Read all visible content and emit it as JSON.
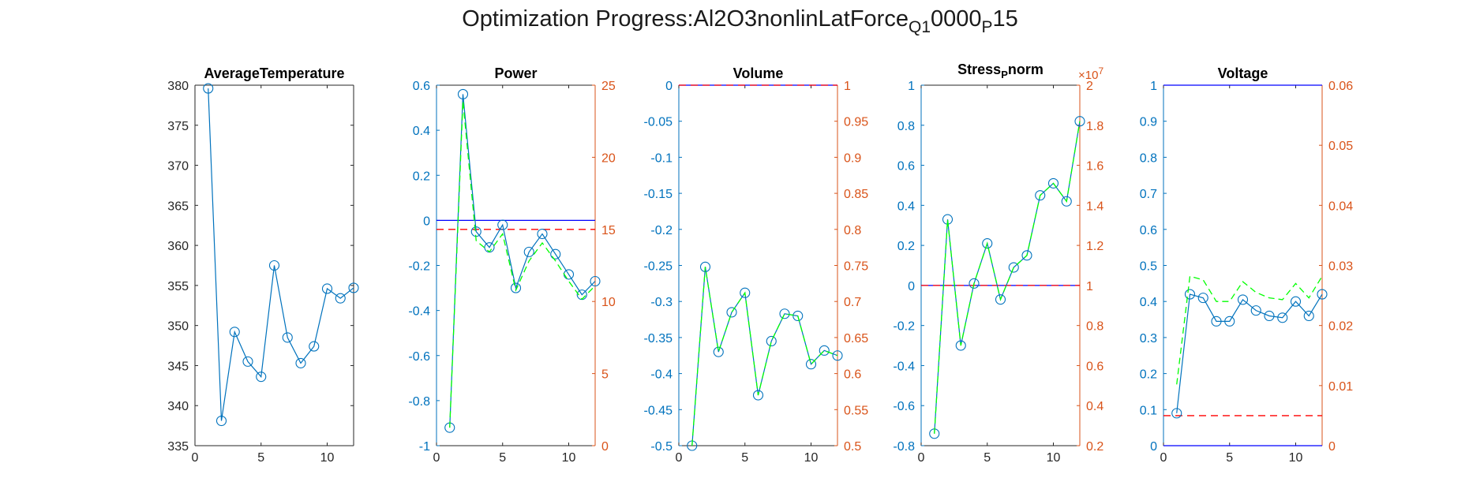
{
  "title": {
    "prefix": "Optimization Progress:Al2O3nonlinLatForce",
    "sub1": "Q1",
    "mid": "0000",
    "sub2": "P",
    "suffix": "15"
  },
  "colors": {
    "axis_left": "#0072BD",
    "axis_right": "#D95319",
    "history": "#0072BD",
    "surrogate": "#00FF00",
    "target": "#0000FF",
    "limit": "#FF0000",
    "black_axis": "#262626"
  },
  "chart_data": [
    {
      "type": "line",
      "title": "AverageTemperature",
      "x": [
        1,
        2,
        3,
        4,
        5,
        6,
        7,
        8,
        9,
        10,
        11,
        12
      ],
      "xlim": [
        0,
        12
      ],
      "xticks": [
        0,
        5,
        10
      ],
      "ylim": [
        335,
        380
      ],
      "yticks": [
        335,
        340,
        345,
        350,
        355,
        360,
        365,
        370,
        375,
        380
      ],
      "series": [
        {
          "role": "history",
          "markers": true,
          "values": [
            379.6,
            338.1,
            349.2,
            345.5,
            343.6,
            357.5,
            348.5,
            345.3,
            347.4,
            354.6,
            353.4,
            354.7
          ]
        }
      ]
    },
    {
      "type": "line",
      "title": "Power",
      "x": [
        1,
        2,
        3,
        4,
        5,
        6,
        7,
        8,
        9,
        10,
        11,
        12
      ],
      "xlim": [
        0,
        12
      ],
      "xticks": [
        0,
        5,
        10
      ],
      "ylim": [
        -1,
        0.6
      ],
      "yticks": [
        -1,
        -0.8,
        -0.6,
        -0.4,
        -0.2,
        0,
        0.2,
        0.4,
        0.6
      ],
      "ylim_right": [
        0,
        25
      ],
      "yticks_right": [
        0,
        5,
        10,
        15,
        20,
        25
      ],
      "series": [
        {
          "role": "history",
          "markers": true,
          "values": [
            -0.92,
            0.56,
            -0.05,
            -0.12,
            -0.02,
            -0.3,
            -0.14,
            -0.06,
            -0.15,
            -0.24,
            -0.33,
            -0.27
          ]
        },
        {
          "role": "surrogate",
          "values": [
            -0.92,
            0.53,
            -0.09,
            -0.14,
            -0.06,
            -0.31,
            -0.18,
            -0.1,
            -0.18,
            -0.27,
            -0.35,
            -0.29
          ]
        }
      ],
      "hlines": [
        {
          "role": "target",
          "axis": "left",
          "value": 0
        },
        {
          "role": "limit",
          "axis": "right",
          "value": 15
        }
      ]
    },
    {
      "type": "line",
      "title": "Volume",
      "x": [
        1,
        2,
        3,
        4,
        5,
        6,
        7,
        8,
        9,
        10,
        11,
        12
      ],
      "xlim": [
        0,
        12
      ],
      "xticks": [
        0,
        5,
        10
      ],
      "ylim": [
        -0.5,
        0
      ],
      "yticks": [
        -0.5,
        -0.45,
        -0.4,
        -0.35,
        -0.3,
        -0.25,
        -0.2,
        -0.15,
        -0.1,
        -0.05,
        0
      ],
      "ylim_right": [
        0.5,
        1
      ],
      "yticks_right": [
        0.5,
        0.55,
        0.6,
        0.65,
        0.7,
        0.75,
        0.8,
        0.85,
        0.9,
        0.95,
        1
      ],
      "series": [
        {
          "role": "history",
          "markers": true,
          "values": [
            -0.5,
            -0.252,
            -0.37,
            -0.315,
            -0.288,
            -0.43,
            -0.355,
            -0.317,
            -0.32,
            -0.387,
            -0.368,
            -0.375
          ]
        },
        {
          "role": "surrogate",
          "values": [
            -0.5,
            -0.252,
            -0.37,
            -0.315,
            -0.288,
            -0.43,
            -0.355,
            -0.317,
            -0.32,
            -0.387,
            -0.368,
            -0.375
          ]
        }
      ],
      "hlines": [
        {
          "role": "target",
          "axis": "left",
          "value": 0
        },
        {
          "role": "limit",
          "axis": "right",
          "value": 1
        }
      ]
    },
    {
      "type": "line",
      "title": "Stress",
      "title_sub": "P",
      "title_suffix": "norm",
      "x": [
        1,
        2,
        3,
        4,
        5,
        6,
        7,
        8,
        9,
        10,
        11,
        12
      ],
      "xlim": [
        0,
        12
      ],
      "xticks": [
        0,
        5,
        10
      ],
      "ylim": [
        -0.8,
        1
      ],
      "yticks": [
        -0.8,
        -0.6,
        -0.4,
        -0.2,
        0,
        0.2,
        0.4,
        0.6,
        0.8,
        1
      ],
      "ylim_right": [
        0.2,
        2
      ],
      "yticks_right": [
        0.2,
        0.4,
        0.6,
        0.8,
        1,
        1.2,
        1.4,
        1.6,
        1.8,
        2
      ],
      "exponent_label": "×10",
      "exponent_power": "7",
      "series": [
        {
          "role": "history",
          "markers": true,
          "values": [
            -0.74,
            0.33,
            -0.3,
            0.01,
            0.21,
            -0.07,
            0.09,
            0.15,
            0.45,
            0.51,
            0.42,
            0.82
          ]
        },
        {
          "role": "surrogate",
          "values": [
            -0.74,
            0.33,
            -0.3,
            0.01,
            0.21,
            -0.07,
            0.09,
            0.15,
            0.45,
            0.51,
            0.42,
            0.82
          ]
        }
      ],
      "hlines": [
        {
          "role": "target",
          "axis": "left",
          "value": 0
        },
        {
          "role": "limit",
          "axis": "right",
          "value": 1
        }
      ]
    },
    {
      "type": "line",
      "title": "Voltage",
      "x": [
        1,
        2,
        3,
        4,
        5,
        6,
        7,
        8,
        9,
        10,
        11,
        12
      ],
      "xlim": [
        0,
        12
      ],
      "xticks": [
        0,
        5,
        10
      ],
      "ylim": [
        0,
        1
      ],
      "yticks": [
        0,
        0.1,
        0.2,
        0.3,
        0.4,
        0.5,
        0.6,
        0.7,
        0.8,
        0.9,
        1
      ],
      "ylim_right": [
        0,
        0.06
      ],
      "yticks_right": [
        0,
        0.01,
        0.02,
        0.03,
        0.04,
        0.05,
        0.06
      ],
      "series": [
        {
          "role": "history",
          "markers": true,
          "values": [
            0.09,
            0.42,
            0.41,
            0.345,
            0.345,
            0.405,
            0.375,
            0.36,
            0.355,
            0.4,
            0.36,
            0.42
          ]
        },
        {
          "role": "surrogate",
          "values": [
            0.17,
            0.47,
            0.46,
            0.4,
            0.4,
            0.455,
            0.425,
            0.41,
            0.405,
            0.45,
            0.41,
            0.47
          ]
        }
      ],
      "hlines": [
        {
          "role": "limit",
          "axis": "right",
          "value": 0.005
        },
        {
          "role": "target",
          "axis": "left",
          "value": 1
        },
        {
          "role": "target",
          "axis": "left",
          "value": 0
        }
      ]
    }
  ]
}
